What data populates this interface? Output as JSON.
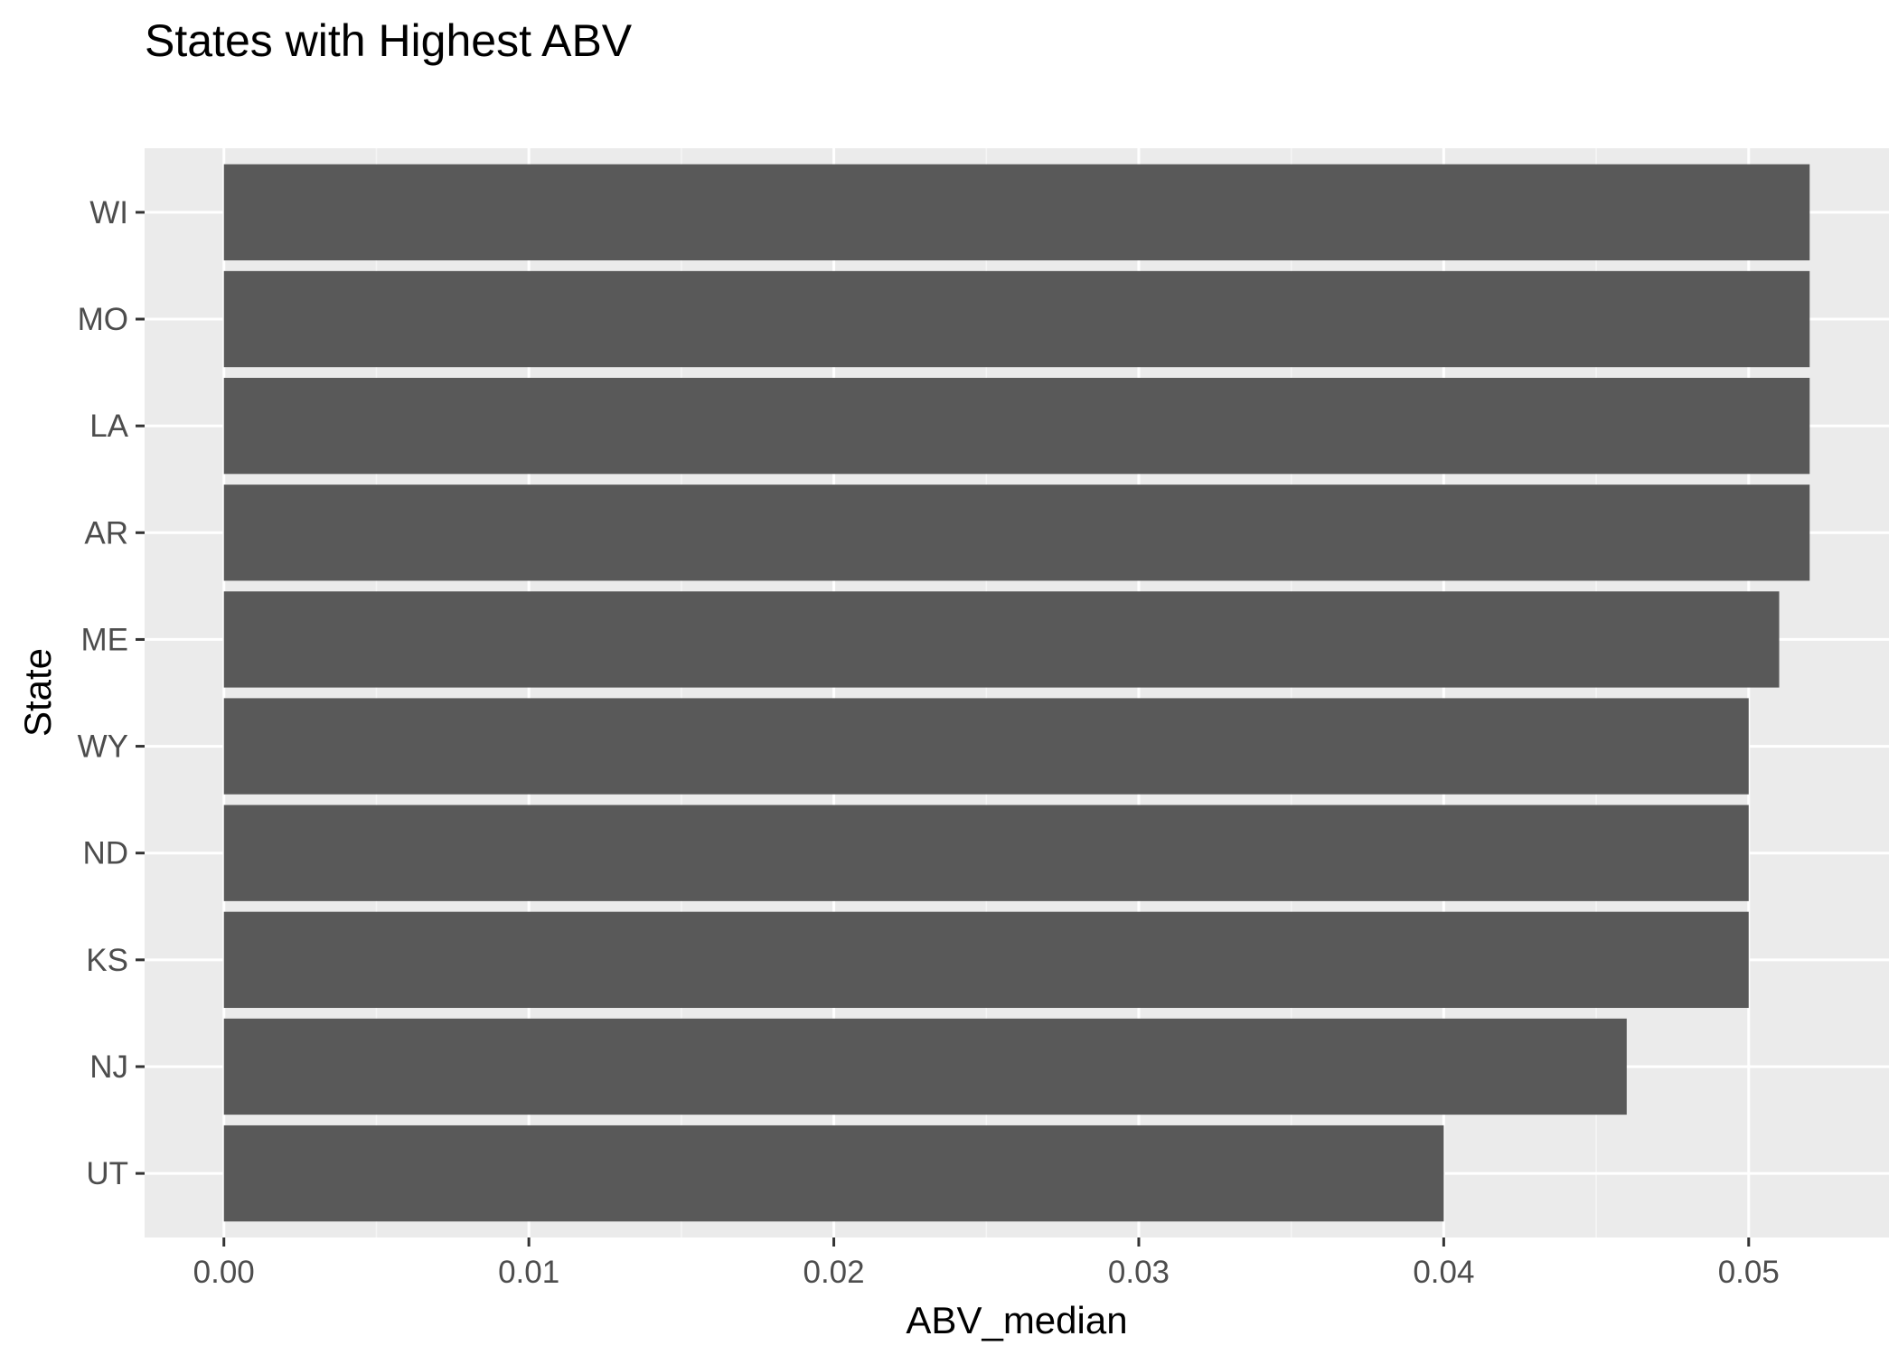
{
  "chart_data": {
    "type": "bar",
    "orientation": "horizontal",
    "title": "States with Highest ABV",
    "xlabel": "ABV_median",
    "ylabel": "State",
    "categories": [
      "WI",
      "MO",
      "LA",
      "AR",
      "ME",
      "WY",
      "ND",
      "KS",
      "NJ",
      "UT"
    ],
    "values": [
      0.052,
      0.052,
      0.052,
      0.052,
      0.051,
      0.05,
      0.05,
      0.05,
      0.046,
      0.04
    ],
    "xlim": [
      -0.0026,
      0.0546
    ],
    "x_ticks": [
      0.0,
      0.01,
      0.02,
      0.03,
      0.04,
      0.05
    ],
    "x_tick_labels": [
      "0.00",
      "0.01",
      "0.02",
      "0.03",
      "0.04",
      "0.05"
    ],
    "grid": true,
    "legend": "none",
    "colors": {
      "bar": "#595959",
      "panel_background": "#ebebeb",
      "grid_major": "#ffffff",
      "grid_minor": "#f5f5f5",
      "tick_text": "#4d4d4d",
      "tick_mark": "#333333"
    }
  }
}
